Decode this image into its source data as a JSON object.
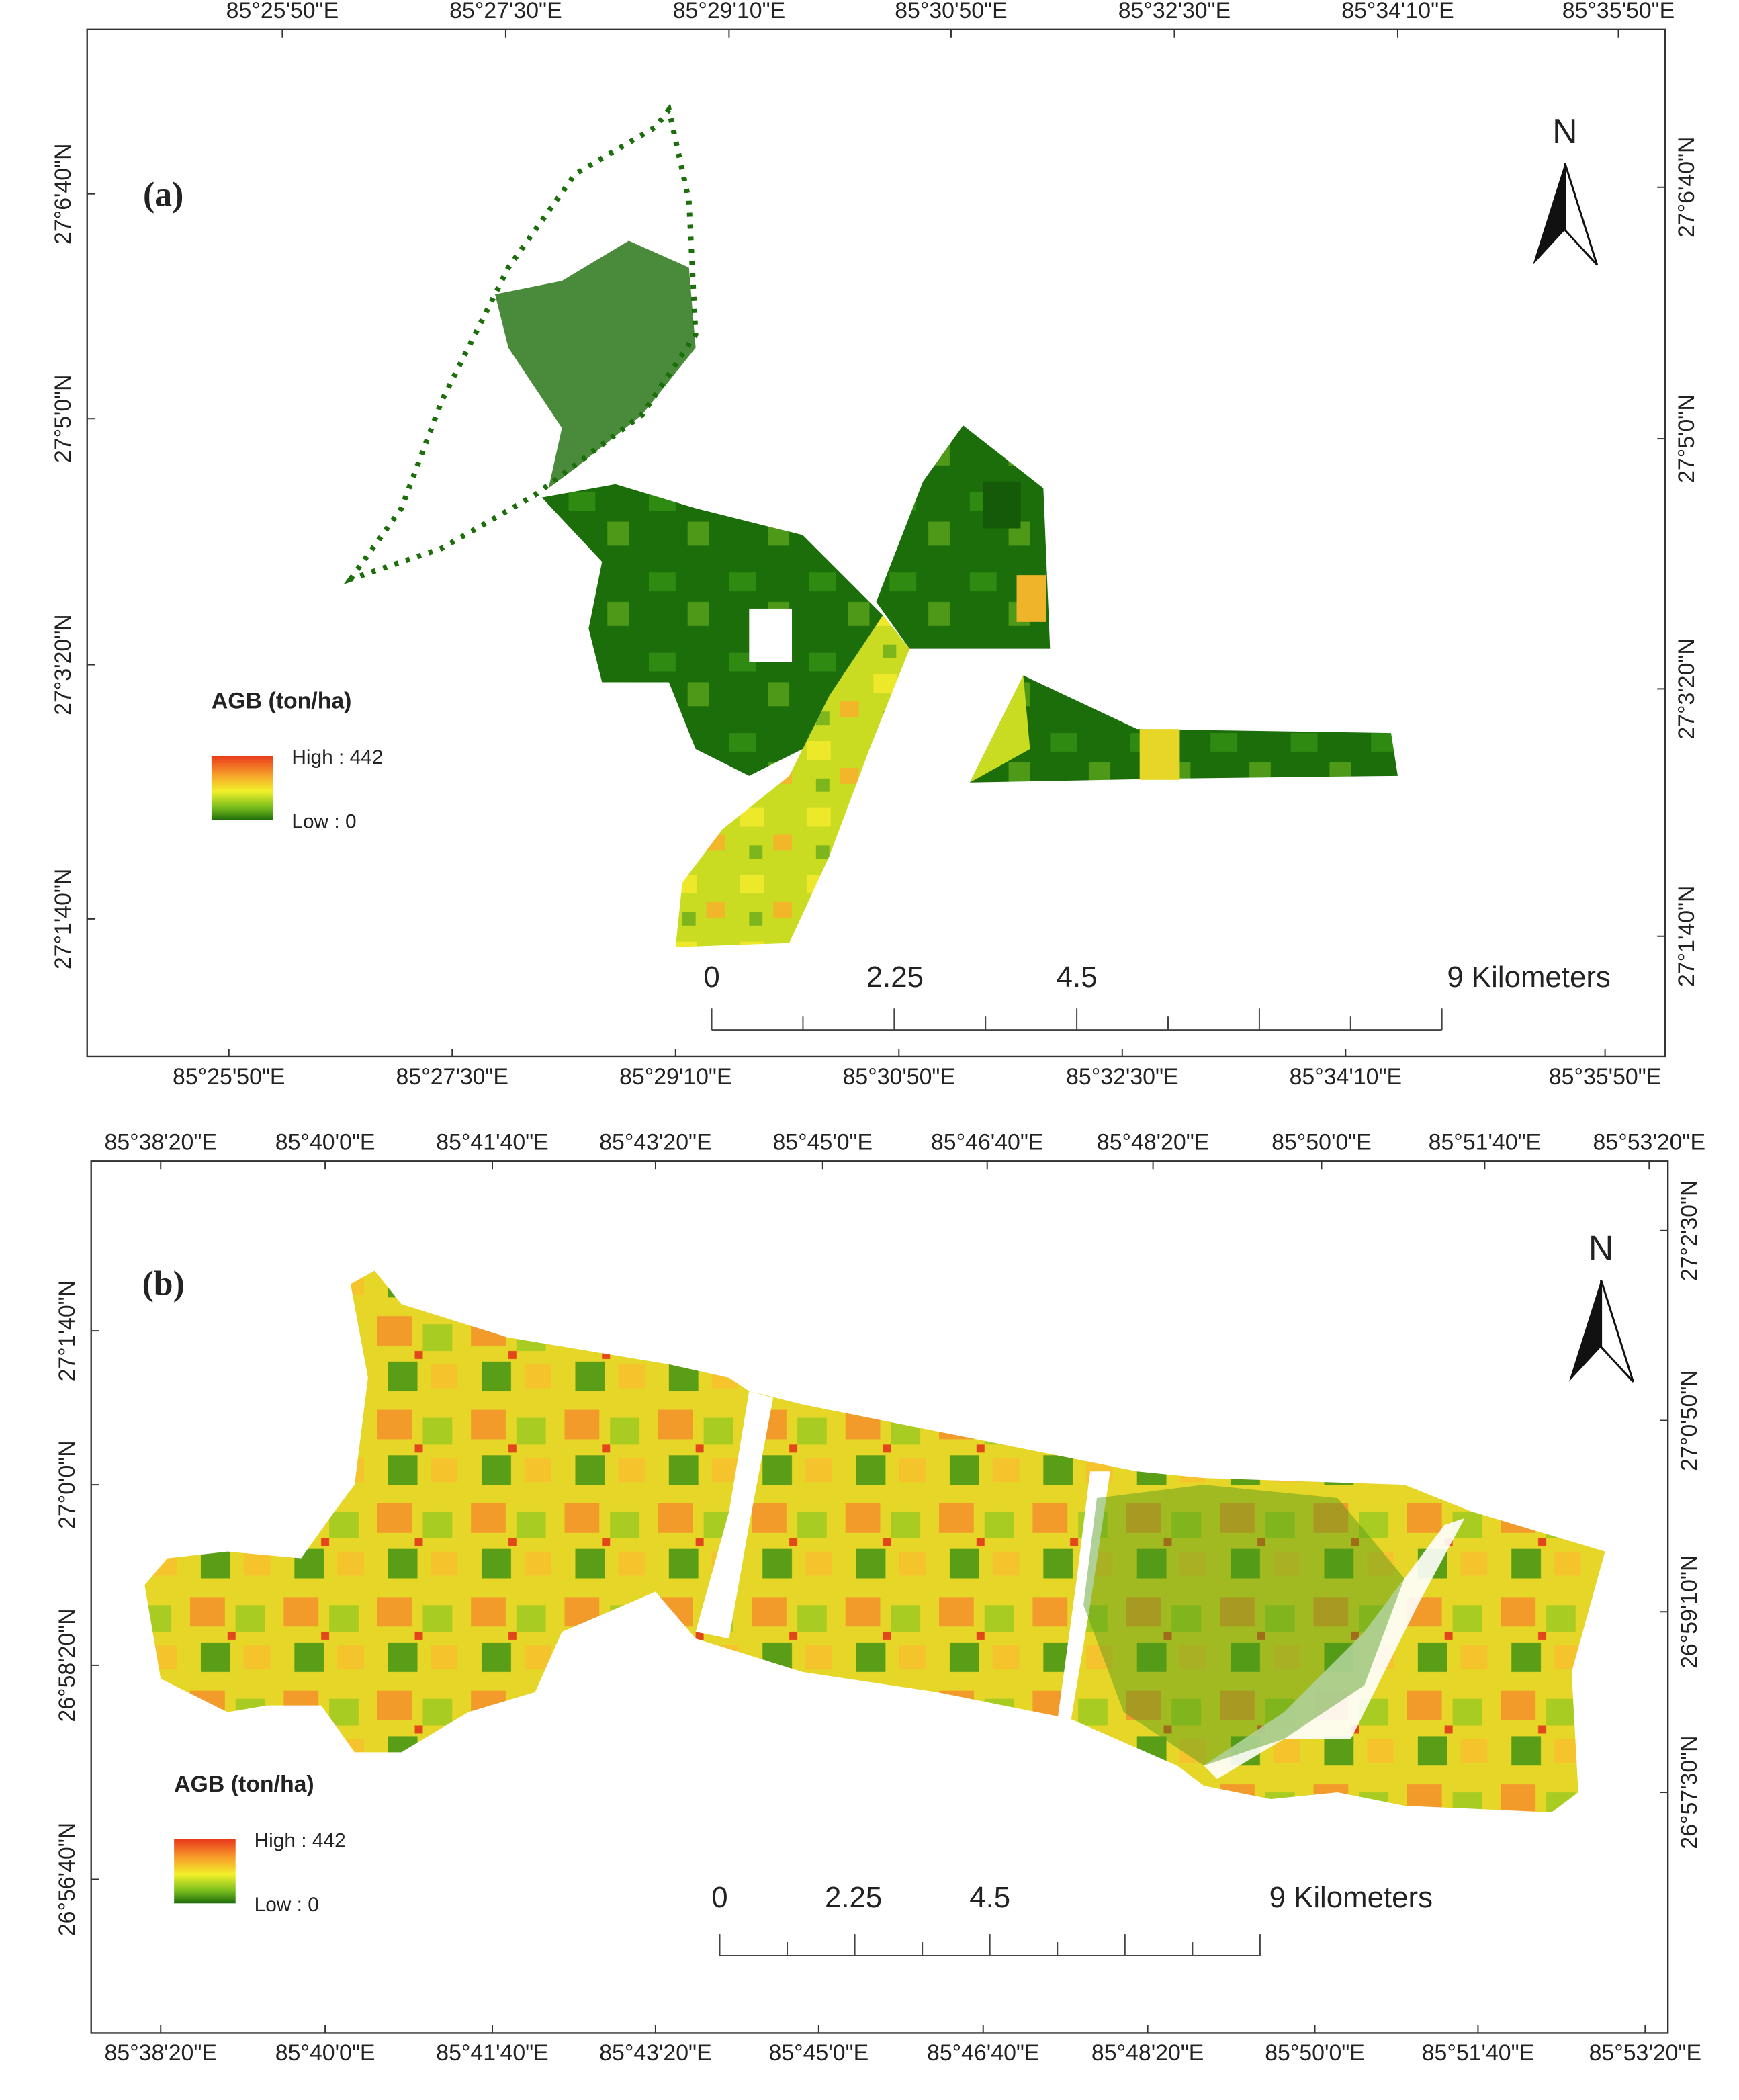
{
  "panels": [
    {
      "label": "(a)",
      "x_labels_top": [
        "85°25'50\"E",
        "85°27'30\"E",
        "85°29'10\"E",
        "85°30'50\"E",
        "85°32'30\"E",
        "85°34'10\"E",
        "85°35'50\"E"
      ],
      "x_labels_bottom": [
        "85°25'50\"E",
        "85°27'30\"E",
        "85°29'10\"E",
        "85°30'50\"E",
        "85°32'30\"E",
        "85°34'10\"E",
        "85°35'50\"E"
      ],
      "y_labels_left": [
        "27°6'40\"N",
        "27°5'0\"N",
        "27°3'20\"N",
        "27°1'40\"N"
      ],
      "y_labels_right": [
        "27°6'40\"N",
        "27°5'0\"N",
        "27°3'20\"N",
        "27°1'40\"N"
      ],
      "legend": {
        "title": "AGB (ton/ha)",
        "high": "High : 442",
        "low": "Low : 0"
      },
      "scale_bar": [
        "0",
        "2.25",
        "4.5",
        "9 Kilometers"
      ],
      "north": "N"
    },
    {
      "label": "(b)",
      "x_labels_top": [
        "85°38'20\"E",
        "85°40'0\"E",
        "85°41'40\"E",
        "85°43'20\"E",
        "85°45'0\"E",
        "85°46'40\"E",
        "85°48'20\"E",
        "85°50'0\"E",
        "85°51'40\"E",
        "85°53'20\"E"
      ],
      "x_labels_bottom": [
        "85°38'20\"E",
        "85°40'0\"E",
        "85°41'40\"E",
        "85°43'20\"E",
        "85°45'0\"E",
        "85°46'40\"E",
        "85°48'20\"E",
        "85°50'0\"E",
        "85°51'40\"E",
        "85°53'20\"E"
      ],
      "y_labels_left": [
        "27°1'40\"N",
        "27°0'0\"N",
        "26°58'20\"N",
        "26°56'40\"N"
      ],
      "y_labels_right": [
        "27°2'30\"N",
        "27°0'50\"N",
        "26°59'10\"N",
        "26°57'30\"N"
      ],
      "legend": {
        "title": "AGB (ton/ha)",
        "high": "High : 442",
        "low": "Low : 0"
      },
      "scale_bar": [
        "0",
        "2.25",
        "4.5",
        "9 Kilometers"
      ],
      "north": "N"
    }
  ]
}
